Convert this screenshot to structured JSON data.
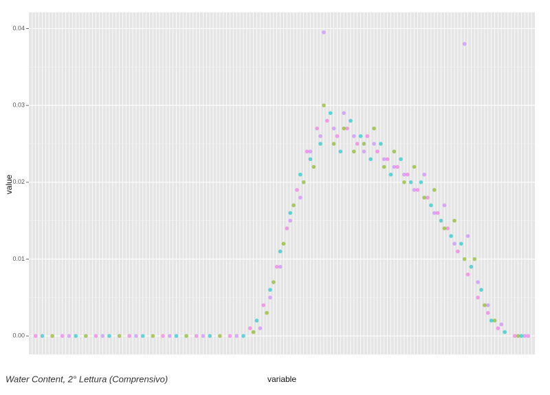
{
  "chart_data": {
    "type": "scatter",
    "caption": "Water Content, 2° Lettura (Comprensivo)",
    "x_label": "variable",
    "y_label": "value",
    "xlim": [
      0,
      151
    ],
    "ylim": [
      -0.0024,
      0.0421
    ],
    "yticks": [
      {
        "value": 0,
        "label": "0.00"
      },
      0.01,
      0.02,
      0.03,
      0.04
    ],
    "grid": true,
    "series": [
      {
        "color": "#F564E3",
        "x": [
          2,
          10,
          20,
          30,
          40,
          50,
          60,
          66,
          70,
          74,
          77,
          80,
          83,
          86,
          89,
          92,
          95,
          98,
          101,
          104,
          107,
          110,
          113,
          116,
          119,
          122,
          125,
          128,
          131,
          134,
          137,
          140,
          145,
          149
        ],
        "values": [
          0,
          0,
          0,
          0,
          0,
          0,
          0,
          0.001,
          0.004,
          0.009,
          0.014,
          0.019,
          0.024,
          0.027,
          0.028,
          0.026,
          0.027,
          0.025,
          0.026,
          0.024,
          0.023,
          0.022,
          0.021,
          0.019,
          0.018,
          0.016,
          0.014,
          0.011,
          0.008,
          0.005,
          0.003,
          0.001,
          0,
          0
        ]
      },
      {
        "color": "#00BFC4",
        "x": [
          4,
          14,
          24,
          34,
          44,
          54,
          64,
          68,
          72,
          75,
          78,
          81,
          84,
          87,
          90,
          93,
          96,
          99,
          102,
          105,
          108,
          111,
          114,
          117,
          120,
          123,
          126,
          129,
          132,
          135,
          138,
          142,
          147
        ],
        "values": [
          0,
          0,
          0,
          0,
          0,
          0,
          0,
          0.002,
          0.006,
          0.011,
          0.016,
          0.021,
          0.023,
          0.025,
          0.029,
          0.024,
          0.028,
          0.026,
          0.023,
          0.025,
          0.021,
          0.023,
          0.02,
          0.02,
          0.017,
          0.015,
          0.013,
          0.012,
          0.009,
          0.006,
          0.002,
          0.0005,
          0
        ]
      },
      {
        "color": "#7CAE00",
        "x": [
          7,
          17,
          27,
          37,
          47,
          57,
          67,
          71,
          73,
          76,
          79,
          82,
          85,
          88,
          91,
          94,
          97,
          100,
          103,
          106,
          109,
          112,
          115,
          118,
          121,
          124,
          127,
          130,
          133,
          136,
          139,
          146
        ],
        "values": [
          0,
          0,
          0,
          0,
          0,
          0,
          0.0005,
          0.003,
          0.007,
          0.012,
          0.017,
          0.02,
          0.022,
          0.03,
          0.025,
          0.027,
          0.024,
          0.025,
          0.027,
          0.022,
          0.024,
          0.02,
          0.022,
          0.018,
          0.019,
          0.014,
          0.015,
          0.01,
          0.01,
          0.004,
          0.002,
          0
        ]
      },
      {
        "color": "#C77CFF",
        "x": [
          12,
          22,
          32,
          42,
          52,
          62,
          69,
          72,
          75,
          78,
          81,
          84,
          87,
          88,
          91,
          94,
          97,
          100,
          103,
          106,
          109,
          112,
          115,
          118,
          121,
          124,
          127,
          130,
          131,
          134,
          137,
          141,
          148
        ],
        "values": [
          0,
          0,
          0,
          0,
          0,
          0,
          0.001,
          0.005,
          0.009,
          0.015,
          0.018,
          0.024,
          0.026,
          0.0395,
          0.027,
          0.029,
          0.026,
          0.024,
          0.025,
          0.023,
          0.022,
          0.021,
          0.019,
          0.021,
          0.016,
          0.017,
          0.012,
          0.038,
          0.013,
          0.007,
          0.004,
          0.0015,
          0
        ]
      }
    ]
  }
}
